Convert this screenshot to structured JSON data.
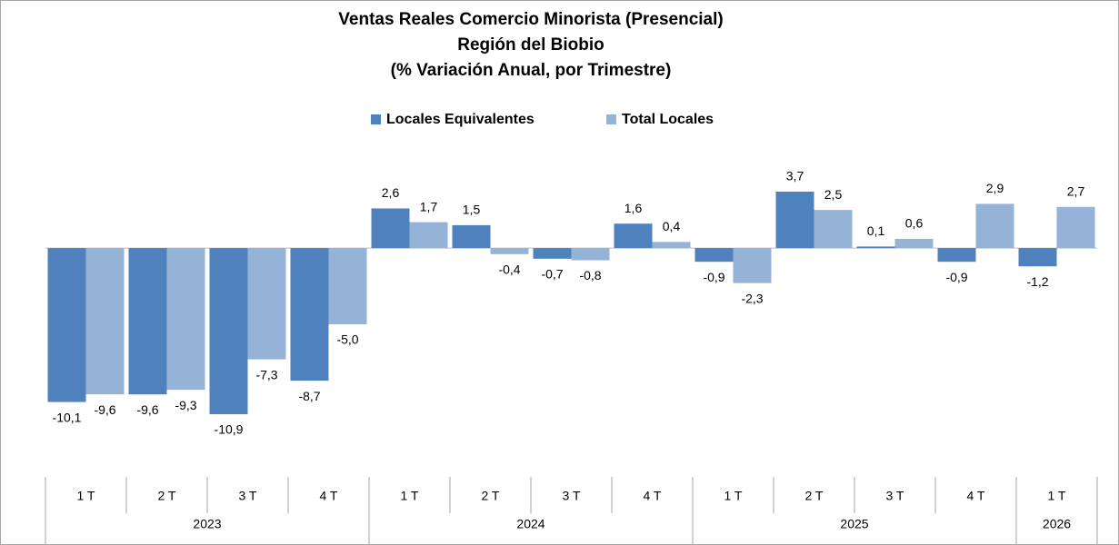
{
  "chart_data": {
    "type": "bar",
    "title": [
      "Ventas Reales Comercio Minorista (Presencial)",
      "Región del Biobio",
      "(% Variación Anual, por Trimestre)"
    ],
    "categories": [
      "1 T",
      "2 T",
      "3 T",
      "4 T",
      "1 T",
      "2 T",
      "3 T",
      "4 T",
      "1 T",
      "2 T",
      "3 T",
      "4 T",
      "1 T"
    ],
    "category_groups": [
      "2023",
      "2023",
      "2023",
      "2023",
      "2024",
      "2024",
      "2024",
      "2024",
      "2025",
      "2025",
      "2025",
      "2025",
      "2026"
    ],
    "series": [
      {
        "name": "Locales Equivalentes",
        "color": "#4f81bd",
        "values": [
          -10.1,
          -9.6,
          -10.9,
          -8.7,
          2.6,
          1.5,
          -0.7,
          1.6,
          -0.9,
          3.7,
          0.1,
          -0.9,
          -1.2
        ],
        "value_labels": [
          "-10,1",
          "-9,6",
          "-10,9",
          "-8,7",
          "2,6",
          "1,5",
          "-0,7",
          "1,6",
          "-0,9",
          "3,7",
          "0,1",
          "-0,9",
          "-1,2"
        ]
      },
      {
        "name": "Total Locales",
        "color": "#95b3d7",
        "values": [
          -9.6,
          -9.3,
          -7.3,
          -5.0,
          1.7,
          -0.4,
          -0.8,
          0.4,
          -2.3,
          2.5,
          0.6,
          2.9,
          2.7
        ],
        "value_labels": [
          "-9,6",
          "-9,3",
          "-7,3",
          "-5,0",
          "1,7",
          "-0,4",
          "-0,8",
          "0,4",
          "-2,3",
          "2,5",
          "0,6",
          "2,9",
          "2,7"
        ]
      }
    ],
    "legend": "top"
  }
}
